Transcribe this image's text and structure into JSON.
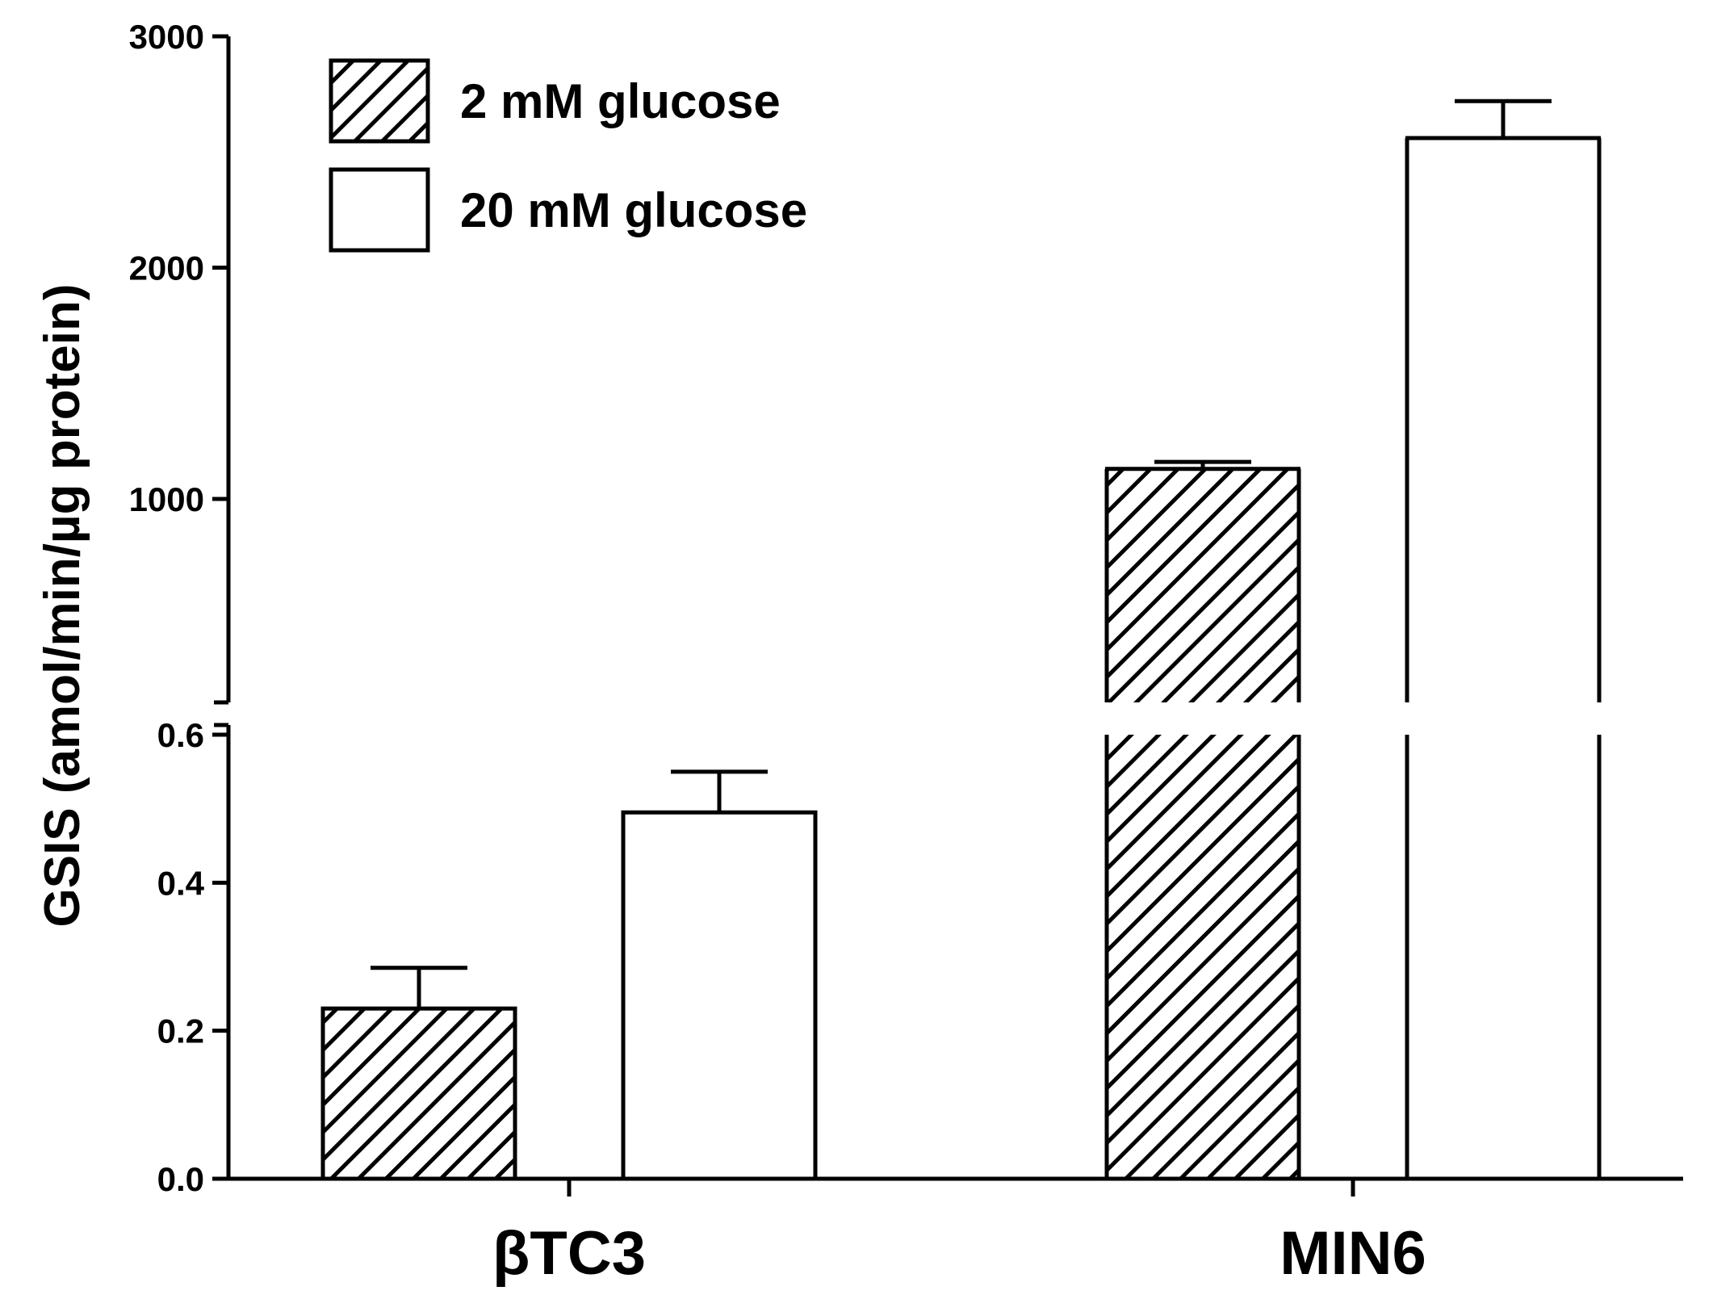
{
  "chart_data": {
    "type": "bar",
    "categories": [
      "βTC3",
      "MIN6"
    ],
    "ylabel": "GSIS (amol/min/µg protein)",
    "xlabel": "",
    "axis_break": true,
    "lower_segment": {
      "ylim": [
        0,
        0.6
      ],
      "ticks": [
        "0.0",
        "0.2",
        "0.4",
        "0.6"
      ]
    },
    "upper_segment": {
      "ylim": [
        0,
        3000
      ],
      "ticks": [
        "1000",
        "2000",
        "3000"
      ]
    },
    "legend_position": "top-left",
    "series": [
      {
        "name": "2 mM glucose",
        "fill": "hatched",
        "values": [
          0.23,
          1130
        ],
        "errors": [
          0.055,
          30
        ]
      },
      {
        "name": "20 mM glucose",
        "fill": "white",
        "values": [
          0.495,
          2560
        ],
        "errors": [
          0.055,
          160
        ]
      }
    ]
  }
}
